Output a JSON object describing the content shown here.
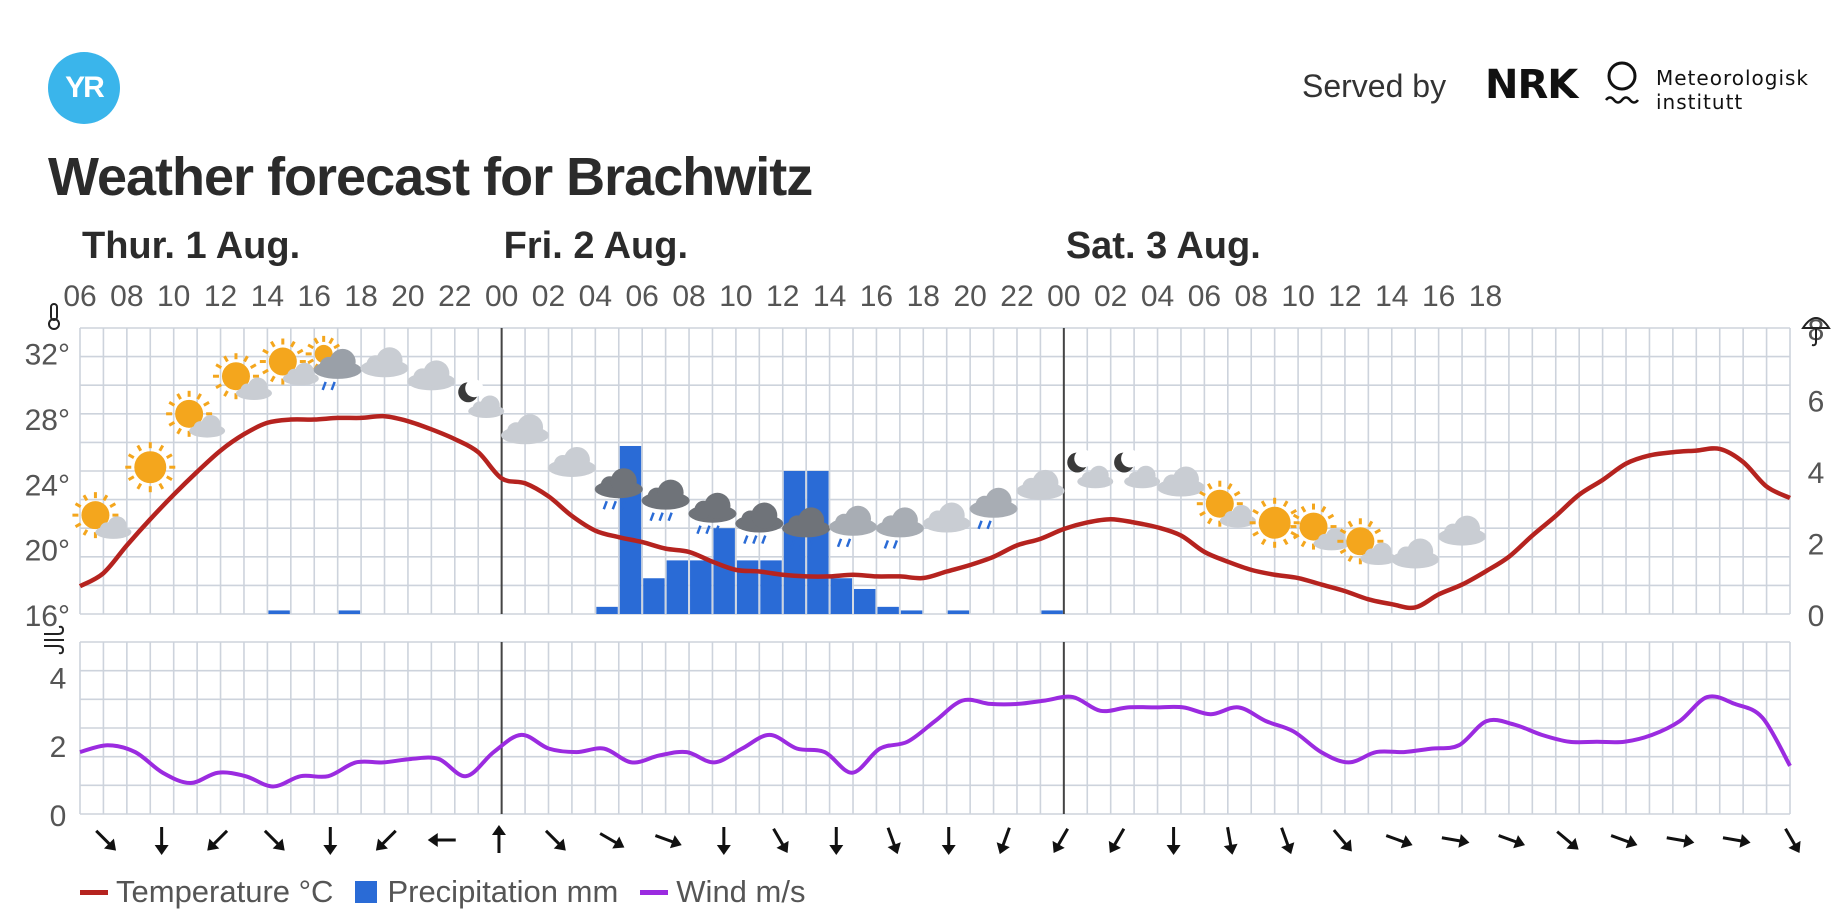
{
  "header": {
    "logo_text": "YR",
    "served_by": "Served by",
    "nrk_logo": "NRK",
    "met_name_line1": "Meteorologisk",
    "met_name_line2": "institutt"
  },
  "title": "Weather forecast for Brachwitz",
  "chart_data": {
    "type": "line",
    "days": [
      {
        "label": "Thur. 1 Aug.",
        "start_index": 0
      },
      {
        "label": "Fri. 2 Aug.",
        "start_index": 9
      },
      {
        "label": "Sat. 3 Aug.",
        "start_index": 21
      }
    ],
    "hour_labels": [
      "06",
      "08",
      "10",
      "12",
      "14",
      "16",
      "18",
      "20",
      "22",
      "00",
      "02",
      "04",
      "06",
      "08",
      "10",
      "12",
      "14",
      "16",
      "18",
      "20",
      "22",
      "00",
      "02",
      "04",
      "06",
      "08",
      "10",
      "12",
      "14",
      "16",
      "18"
    ],
    "temperature_axis": {
      "ticks": [
        "16°",
        "20°",
        "24°",
        "28°",
        "32°"
      ],
      "ylim": [
        16,
        33.5
      ]
    },
    "precipitation_axis": {
      "ticks": [
        "0",
        "2",
        "4",
        "6",
        "8"
      ],
      "ylim": [
        0,
        8
      ]
    },
    "wind_axis": {
      "ticks": [
        "0",
        "2",
        "4"
      ],
      "ylim": [
        0,
        5
      ]
    },
    "temperature": [
      [
        0,
        17.7
      ],
      [
        1,
        18.5
      ],
      [
        2,
        20.2
      ],
      [
        3,
        21.8
      ],
      [
        4,
        23.3
      ],
      [
        5,
        24.7
      ],
      [
        6,
        26.0
      ],
      [
        7,
        27.0
      ],
      [
        8,
        27.7
      ],
      [
        9,
        27.9
      ],
      [
        10,
        27.9
      ],
      [
        11,
        28.0
      ],
      [
        12,
        28.0
      ],
      [
        13,
        28.1
      ],
      [
        14,
        27.8
      ],
      [
        15,
        27.3
      ],
      [
        16,
        26.7
      ],
      [
        17,
        25.9
      ],
      [
        18,
        24.3
      ],
      [
        19,
        24.0
      ],
      [
        20,
        23.2
      ],
      [
        21,
        22.0
      ],
      [
        22,
        21.1
      ],
      [
        23,
        20.7
      ],
      [
        24,
        20.4
      ],
      [
        25,
        20.0
      ],
      [
        26,
        19.8
      ],
      [
        27,
        19.2
      ],
      [
        28,
        18.7
      ],
      [
        29,
        18.6
      ],
      [
        30,
        18.4
      ],
      [
        31,
        18.3
      ],
      [
        32,
        18.3
      ],
      [
        33,
        18.4
      ],
      [
        34,
        18.3
      ],
      [
        35,
        18.3
      ],
      [
        36,
        18.2
      ],
      [
        37,
        18.6
      ],
      [
        38,
        19.0
      ],
      [
        39,
        19.5
      ],
      [
        40,
        20.2
      ],
      [
        41,
        20.6
      ],
      [
        42,
        21.2
      ],
      [
        43,
        21.6
      ],
      [
        44,
        21.8
      ],
      [
        45,
        21.6
      ],
      [
        46,
        21.3
      ],
      [
        47,
        20.8
      ],
      [
        48,
        19.8
      ],
      [
        49,
        19.2
      ],
      [
        50,
        18.7
      ],
      [
        51,
        18.4
      ],
      [
        52,
        18.2
      ],
      [
        53,
        17.8
      ],
      [
        54,
        17.4
      ],
      [
        55,
        16.9
      ],
      [
        56,
        16.6
      ],
      [
        57,
        16.4
      ],
      [
        58,
        17.2
      ],
      [
        59,
        17.8
      ],
      [
        60,
        18.6
      ],
      [
        61,
        19.5
      ],
      [
        62,
        20.8
      ],
      [
        63,
        22.0
      ],
      [
        64,
        23.3
      ],
      [
        65,
        24.2
      ],
      [
        66,
        25.2
      ],
      [
        67,
        25.7
      ],
      [
        68,
        25.9
      ],
      [
        69,
        26.0
      ],
      [
        70,
        26.1
      ],
      [
        71,
        25.3
      ],
      [
        72,
        23.8
      ],
      [
        73,
        23.1
      ]
    ],
    "precipitation": [
      [
        8,
        0.1
      ],
      [
        11,
        0.1
      ],
      [
        22,
        0.2
      ],
      [
        23,
        4.7
      ],
      [
        24,
        1.0
      ],
      [
        25,
        1.5
      ],
      [
        26,
        1.5
      ],
      [
        27,
        2.4
      ],
      [
        28,
        1.5
      ],
      [
        29,
        1.5
      ],
      [
        30,
        4.0
      ],
      [
        31,
        4.0
      ],
      [
        32,
        1.0
      ],
      [
        33,
        0.7
      ],
      [
        34,
        0.2
      ],
      [
        35,
        0.1
      ],
      [
        37,
        0.1
      ],
      [
        41,
        0.1
      ]
    ],
    "wind": [
      [
        0,
        1.8
      ],
      [
        1,
        2.0
      ],
      [
        2,
        1.8
      ],
      [
        3,
        1.2
      ],
      [
        4,
        0.9
      ],
      [
        5,
        1.2
      ],
      [
        6,
        1.1
      ],
      [
        7,
        0.8
      ],
      [
        8,
        1.1
      ],
      [
        9,
        1.1
      ],
      [
        10,
        1.5
      ],
      [
        11,
        1.5
      ],
      [
        12,
        1.6
      ],
      [
        13,
        1.6
      ],
      [
        14,
        1.1
      ],
      [
        15,
        1.8
      ],
      [
        16,
        2.3
      ],
      [
        17,
        1.9
      ],
      [
        18,
        1.8
      ],
      [
        19,
        1.9
      ],
      [
        20,
        1.5
      ],
      [
        21,
        1.7
      ],
      [
        22,
        1.8
      ],
      [
        23,
        1.5
      ],
      [
        24,
        1.9
      ],
      [
        25,
        2.3
      ],
      [
        26,
        1.9
      ],
      [
        27,
        1.8
      ],
      [
        28,
        1.2
      ],
      [
        29,
        1.9
      ],
      [
        30,
        2.1
      ],
      [
        31,
        2.7
      ],
      [
        32,
        3.3
      ],
      [
        33,
        3.2
      ],
      [
        34,
        3.2
      ],
      [
        35,
        3.3
      ],
      [
        36,
        3.4
      ],
      [
        37,
        3.0
      ],
      [
        38,
        3.1
      ],
      [
        39,
        3.1
      ],
      [
        40,
        3.1
      ],
      [
        41,
        2.9
      ],
      [
        42,
        3.1
      ],
      [
        43,
        2.7
      ],
      [
        44,
        2.4
      ],
      [
        45,
        1.8
      ],
      [
        46,
        1.5
      ],
      [
        47,
        1.8
      ],
      [
        48,
        1.8
      ],
      [
        49,
        1.9
      ],
      [
        50,
        2.0
      ],
      [
        51,
        2.7
      ],
      [
        52,
        2.6
      ],
      [
        53,
        2.3
      ],
      [
        54,
        2.1
      ],
      [
        55,
        2.1
      ],
      [
        56,
        2.1
      ],
      [
        57,
        2.3
      ],
      [
        58,
        2.7
      ],
      [
        59,
        3.4
      ],
      [
        60,
        3.2
      ],
      [
        61,
        2.8
      ],
      [
        62,
        1.4
      ]
    ],
    "weather_symbols": [
      {
        "i": 1,
        "icon": "partly-sunny"
      },
      {
        "i": 3,
        "icon": "sunny"
      },
      {
        "i": 5,
        "icon": "partly-sunny"
      },
      {
        "i": 7,
        "icon": "partly-sunny"
      },
      {
        "i": 9,
        "icon": "partly-sunny"
      },
      {
        "i": 11,
        "icon": "cloudy-rain"
      },
      {
        "i": 13,
        "icon": "cloudy"
      },
      {
        "i": 15,
        "icon": "cloudy"
      },
      {
        "i": 17,
        "icon": "partly-cloudy-night"
      },
      {
        "i": 19,
        "icon": "cloudy"
      },
      {
        "i": 21,
        "icon": "cloudy"
      },
      {
        "i": 23,
        "icon": "rain"
      },
      {
        "i": 25,
        "icon": "rain"
      },
      {
        "i": 27,
        "icon": "rain"
      },
      {
        "i": 29,
        "icon": "rain"
      },
      {
        "i": 31,
        "icon": "rain"
      },
      {
        "i": 33,
        "icon": "light-rain"
      },
      {
        "i": 35,
        "icon": "light-rain"
      },
      {
        "i": 37,
        "icon": "cloudy"
      },
      {
        "i": 39,
        "icon": "light-rain"
      },
      {
        "i": 41,
        "icon": "cloudy"
      },
      {
        "i": 43,
        "icon": "partly-cloudy-night"
      },
      {
        "i": 45,
        "icon": "partly-cloudy-night"
      },
      {
        "i": 47,
        "icon": "cloudy"
      },
      {
        "i": 49,
        "icon": "partly-sunny"
      },
      {
        "i": 51,
        "icon": "sunny"
      },
      {
        "i": 53,
        "icon": "partly-sunny"
      },
      {
        "i": 55,
        "icon": "partly-sunny"
      },
      {
        "i": 57,
        "icon": "cloudy"
      },
      {
        "i": 59,
        "icon": "cloudy"
      }
    ],
    "wind_directions_deg": [
      315,
      0,
      45,
      315,
      0,
      45,
      90,
      180,
      315,
      300,
      290,
      0,
      330,
      0,
      340,
      0,
      20,
      30,
      30,
      0,
      350,
      340,
      320,
      290,
      280,
      290,
      310,
      290,
      280,
      280,
      330
    ],
    "legend": [
      {
        "name": "Temperature °C",
        "color": "#b5231f"
      },
      {
        "name": "Precipitation mm",
        "color": "#2a6bd6"
      },
      {
        "name": "Wind m/s",
        "color": "#9b2be0"
      }
    ],
    "colors": {
      "grid": "#cdd3dc",
      "day_line": "#444444",
      "temperature": "#b5231f",
      "precipitation": "#2a6bd6",
      "wind": "#9b2be0",
      "sun": "#f4a61d",
      "cloud": "#c9cdd3"
    },
    "icons": {
      "temperature_axis": "thermometer-icon",
      "precipitation_axis": "umbrella-icon",
      "wind_axis": "wind-icon"
    }
  }
}
